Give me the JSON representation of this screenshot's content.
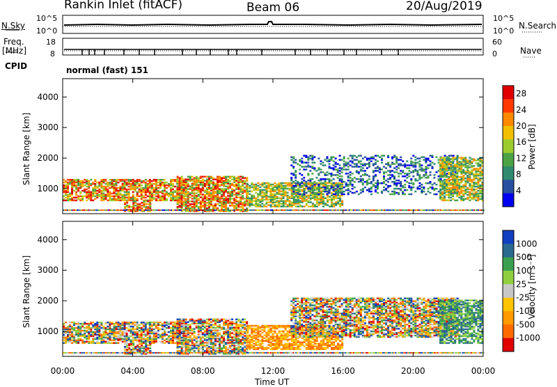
{
  "header": {
    "station": "Rankin Inlet (fitACF)",
    "beam": "Beam 06",
    "date": "20/Aug/2019"
  },
  "top_panels": {
    "nsky_label": "N.Sky",
    "nsky_ticks": [
      "10^5",
      "10^0"
    ],
    "nsearch_label": "N.Search",
    "nsearch_ticks": [
      "10^5",
      "10^0"
    ],
    "freq_label_1": "Freq.",
    "freq_label_2": "[MHz]",
    "freq_ticks": [
      "18",
      "8"
    ],
    "nave_label": "Nave",
    "nave_ticks": [
      "60",
      "0"
    ],
    "cpid_label": "CPID",
    "cpid_value": "normal (fast) 151"
  },
  "colors": {
    "power_scale": [
      "#0000ee",
      "#2850a0",
      "#2f8a6f",
      "#4ba345",
      "#9ccc2e",
      "#f0c000",
      "#ff8a00",
      "#ff3a00",
      "#e00000"
    ],
    "velocity_scale": [
      "#e00000",
      "#ff6a00",
      "#ff9a00",
      "#ffc400",
      "#c8c8c8",
      "#90d040",
      "#3aa050",
      "#2a6a90",
      "#1040c0"
    ]
  },
  "chart_data": [
    {
      "type": "heatmap",
      "title": "",
      "xlabel": "Time UT",
      "ylabel": "Slant Range [km]",
      "x_ticks": [
        "00:00",
        "04:00",
        "08:00",
        "12:00",
        "16:00",
        "20:00",
        "00:00"
      ],
      "y_ticks": [
        "1000",
        "2000",
        "3000",
        "4000"
      ],
      "ylim": [
        180,
        4600
      ],
      "colorbar_label": "Power [dB]",
      "colorbar_ticks": [
        "4",
        "8",
        "12",
        "16",
        "20",
        "24",
        "28"
      ],
      "colorbar_range": [
        0,
        30
      ],
      "echo_regions": [
        {
          "t_start": 0.0,
          "t_end": 7.0,
          "r_low": 600,
          "r_high": 1300,
          "level": "strong"
        },
        {
          "t_start": 3.5,
          "t_end": 5.0,
          "r_low": 250,
          "r_high": 600,
          "level": "strong"
        },
        {
          "t_start": 6.5,
          "t_end": 10.5,
          "r_low": 250,
          "r_high": 1400,
          "level": "strong"
        },
        {
          "t_start": 10.5,
          "t_end": 16.0,
          "r_low": 400,
          "r_high": 1200,
          "level": "medium"
        },
        {
          "t_start": 13.0,
          "t_end": 22.5,
          "r_low": 800,
          "r_high": 2100,
          "level": "weak"
        },
        {
          "t_start": 21.5,
          "t_end": 24.0,
          "r_low": 600,
          "r_high": 2000,
          "level": "medium"
        }
      ]
    },
    {
      "type": "heatmap",
      "title": "",
      "xlabel": "Time UT",
      "ylabel": "Slant Range [km]",
      "x_ticks": [
        "00:00",
        "04:00",
        "08:00",
        "12:00",
        "16:00",
        "20:00",
        "00:00"
      ],
      "y_ticks": [
        "1000",
        "2000",
        "3000",
        "4000"
      ],
      "ylim": [
        180,
        4600
      ],
      "colorbar_label": "Velocity [m s⁻¹]",
      "colorbar_ticks": [
        "1000",
        "500",
        "100",
        "25",
        "-25",
        "-100",
        "-500",
        "-1000"
      ],
      "colorbar_range": [
        -1000,
        1000
      ],
      "echo_regions": [
        {
          "t_start": 0.0,
          "t_end": 7.0,
          "r_low": 600,
          "r_high": 1300,
          "level": "mixed"
        },
        {
          "t_start": 3.5,
          "t_end": 5.0,
          "r_low": 250,
          "r_high": 600,
          "level": "mixed"
        },
        {
          "t_start": 6.5,
          "t_end": 10.5,
          "r_low": 250,
          "r_high": 1400,
          "level": "mixed"
        },
        {
          "t_start": 10.5,
          "t_end": 16.0,
          "r_low": 400,
          "r_high": 1200,
          "level": "negative"
        },
        {
          "t_start": 13.0,
          "t_end": 22.5,
          "r_low": 800,
          "r_high": 2100,
          "level": "mixed"
        },
        {
          "t_start": 21.5,
          "t_end": 24.0,
          "r_low": 600,
          "r_high": 2000,
          "level": "positive"
        }
      ]
    }
  ]
}
